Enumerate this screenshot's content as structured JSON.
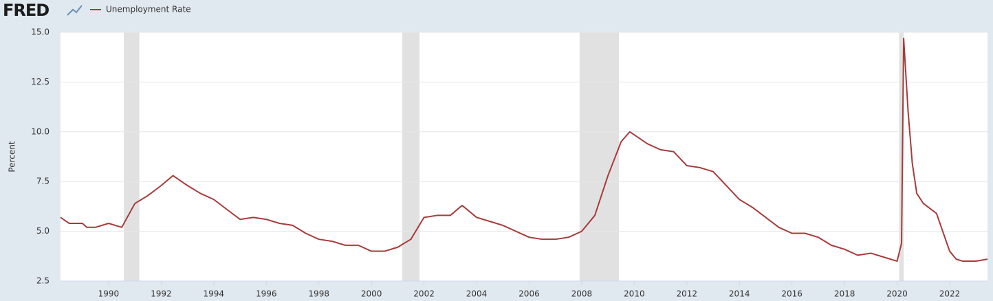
{
  "chart_data": {
    "type": "line",
    "logo": "FRED",
    "ylabel": "Percent",
    "x": [
      1988.17,
      1988.5,
      1989.0,
      1989.17,
      1989.5,
      1990.0,
      1990.5,
      1991.0,
      1991.5,
      1992.0,
      1992.45,
      1993.0,
      1993.5,
      1994.0,
      1994.5,
      1995.0,
      1995.5,
      1996.0,
      1996.5,
      1997.0,
      1997.5,
      1998.0,
      1998.5,
      1999.0,
      1999.5,
      2000.0,
      2000.5,
      2001.0,
      2001.5,
      2002.0,
      2002.5,
      2003.0,
      2003.45,
      2004.0,
      2004.5,
      2005.0,
      2005.5,
      2006.0,
      2006.5,
      2007.0,
      2007.5,
      2008.0,
      2008.5,
      2009.0,
      2009.5,
      2009.83,
      2010.5,
      2011.0,
      2011.5,
      2012.0,
      2012.5,
      2013.0,
      2013.5,
      2014.0,
      2014.5,
      2015.0,
      2015.5,
      2016.0,
      2016.5,
      2017.0,
      2017.5,
      2018.0,
      2018.5,
      2019.0,
      2019.5,
      2020.0,
      2020.17,
      2020.25,
      2020.42,
      2020.58,
      2020.75,
      2021.0,
      2021.5,
      2022.0,
      2022.25,
      2022.5,
      2023.0,
      2023.44
    ],
    "series": [
      {
        "name": "Unemployment Rate",
        "color": "#a83a3a",
        "values": [
          5.7,
          5.4,
          5.4,
          5.2,
          5.2,
          5.4,
          5.2,
          6.4,
          6.8,
          7.3,
          7.8,
          7.3,
          6.9,
          6.6,
          6.1,
          5.6,
          5.7,
          5.6,
          5.4,
          5.3,
          4.9,
          4.6,
          4.5,
          4.3,
          4.3,
          4.0,
          4.0,
          4.2,
          4.6,
          5.7,
          5.8,
          5.8,
          6.3,
          5.7,
          5.5,
          5.3,
          5.0,
          4.7,
          4.6,
          4.6,
          4.7,
          5.0,
          5.8,
          7.8,
          9.5,
          10.0,
          9.4,
          9.1,
          9.0,
          8.3,
          8.2,
          8.0,
          7.3,
          6.6,
          6.2,
          5.7,
          5.2,
          4.9,
          4.9,
          4.7,
          4.3,
          4.1,
          3.8,
          3.9,
          3.7,
          3.5,
          4.4,
          14.7,
          11.0,
          8.4,
          6.9,
          6.4,
          5.9,
          4.0,
          3.6,
          3.5,
          3.5,
          3.6
        ]
      }
    ],
    "recessions": [
      [
        1990.58,
        1991.17
      ],
      [
        2001.17,
        2001.83
      ],
      [
        2007.92,
        2009.42
      ],
      [
        2020.08,
        2020.25
      ]
    ],
    "recession_color": "#e1e1e1",
    "xlim": [
      1988.17,
      2023.44
    ],
    "xticks": [
      1990,
      1992,
      1994,
      1996,
      1998,
      2000,
      2002,
      2004,
      2006,
      2008,
      2010,
      2012,
      2014,
      2016,
      2018,
      2020,
      2022
    ],
    "ylim": [
      2.5,
      15
    ],
    "yticks": [
      {
        "value": 2.5,
        "label": "2.5"
      },
      {
        "value": 5,
        "label": "5.0"
      },
      {
        "value": 7.5,
        "label": "7.5"
      },
      {
        "value": 10,
        "label": "10.0"
      },
      {
        "value": 12.5,
        "label": "12.5"
      },
      {
        "value": 15,
        "label": "15.0"
      }
    ],
    "grid": true
  }
}
